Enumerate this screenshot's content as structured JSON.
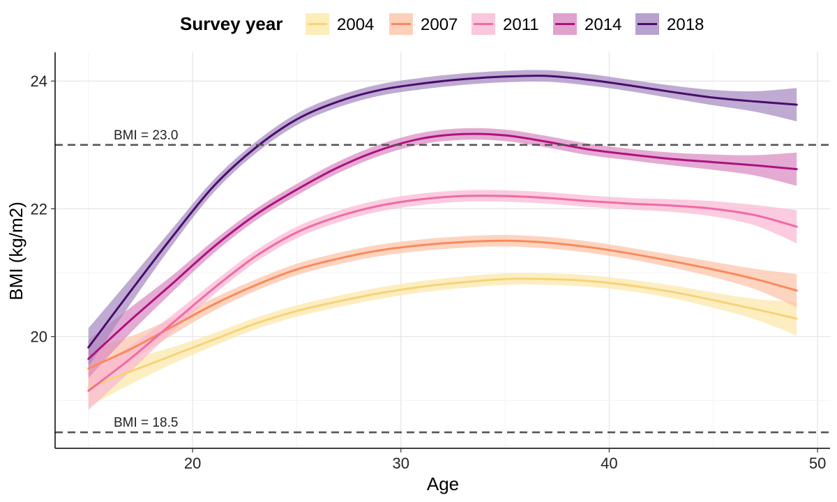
{
  "chart_data": {
    "type": "line",
    "title": "",
    "xlabel": "Age",
    "ylabel": "BMI (kg/m2)",
    "xlim": [
      13.4,
      50.6
    ],
    "ylim": [
      18.25,
      24.45
    ],
    "x_ticks": [
      20,
      30,
      40,
      50
    ],
    "y_ticks": [
      20,
      22,
      24
    ],
    "grid": true,
    "legend": {
      "title": "Survey year",
      "placement": "top"
    },
    "reference_lines": [
      {
        "y": 23.0,
        "label": "BMI = 23.0"
      },
      {
        "y": 18.5,
        "label": "BMI = 18.5"
      }
    ],
    "x": [
      15,
      17,
      19,
      21,
      23,
      25,
      27,
      29,
      31,
      33,
      35,
      37,
      39,
      41,
      43,
      45,
      47,
      49
    ],
    "series": [
      {
        "name": "2004",
        "color": "#f7d27a",
        "band_color": "#fbe8a8",
        "values": [
          19.2,
          19.45,
          19.7,
          19.95,
          20.2,
          20.4,
          20.55,
          20.68,
          20.78,
          20.85,
          20.9,
          20.9,
          20.87,
          20.8,
          20.7,
          20.57,
          20.43,
          20.28
        ],
        "ci_halfwidth": [
          0.3,
          0.2,
          0.13,
          0.1,
          0.09,
          0.09,
          0.09,
          0.09,
          0.09,
          0.09,
          0.09,
          0.09,
          0.09,
          0.09,
          0.1,
          0.12,
          0.16,
          0.26
        ]
      },
      {
        "name": "2007",
        "color": "#f98a5c",
        "band_color": "#fcc4a8",
        "values": [
          19.5,
          19.8,
          20.15,
          20.5,
          20.8,
          21.05,
          21.22,
          21.35,
          21.43,
          21.48,
          21.5,
          21.47,
          21.4,
          21.3,
          21.18,
          21.05,
          20.9,
          20.72
        ],
        "ci_halfwidth": [
          0.3,
          0.2,
          0.13,
          0.1,
          0.09,
          0.09,
          0.09,
          0.09,
          0.09,
          0.09,
          0.09,
          0.09,
          0.09,
          0.09,
          0.1,
          0.12,
          0.16,
          0.26
        ]
      },
      {
        "name": "2011",
        "color": "#f06aa6",
        "band_color": "#f9b9d3",
        "values": [
          19.15,
          19.65,
          20.2,
          20.75,
          21.25,
          21.63,
          21.88,
          22.05,
          22.15,
          22.2,
          22.2,
          22.17,
          22.12,
          22.08,
          22.05,
          22.0,
          21.9,
          21.72
        ],
        "ci_halfwidth": [
          0.3,
          0.2,
          0.13,
          0.1,
          0.09,
          0.09,
          0.09,
          0.09,
          0.09,
          0.09,
          0.09,
          0.09,
          0.09,
          0.09,
          0.1,
          0.12,
          0.16,
          0.26
        ]
      },
      {
        "name": "2014",
        "color": "#ae1180",
        "band_color": "#d98ac0",
        "values": [
          19.65,
          20.25,
          20.82,
          21.4,
          21.9,
          22.3,
          22.65,
          22.92,
          23.1,
          23.17,
          23.15,
          23.05,
          22.93,
          22.85,
          22.78,
          22.73,
          22.68,
          22.62
        ],
        "ci_halfwidth": [
          0.3,
          0.2,
          0.13,
          0.1,
          0.09,
          0.09,
          0.09,
          0.09,
          0.09,
          0.09,
          0.09,
          0.09,
          0.09,
          0.09,
          0.1,
          0.12,
          0.16,
          0.26
        ]
      },
      {
        "name": "2018",
        "color": "#4a0c6b",
        "band_color": "#a68bc0",
        "values": [
          19.83,
          20.7,
          21.55,
          22.35,
          22.95,
          23.4,
          23.68,
          23.86,
          23.96,
          24.03,
          24.07,
          24.08,
          24.02,
          23.93,
          23.83,
          23.74,
          23.68,
          23.63
        ],
        "ci_halfwidth": [
          0.3,
          0.2,
          0.13,
          0.1,
          0.09,
          0.09,
          0.09,
          0.09,
          0.09,
          0.09,
          0.09,
          0.09,
          0.09,
          0.09,
          0.1,
          0.12,
          0.16,
          0.26
        ]
      }
    ]
  }
}
